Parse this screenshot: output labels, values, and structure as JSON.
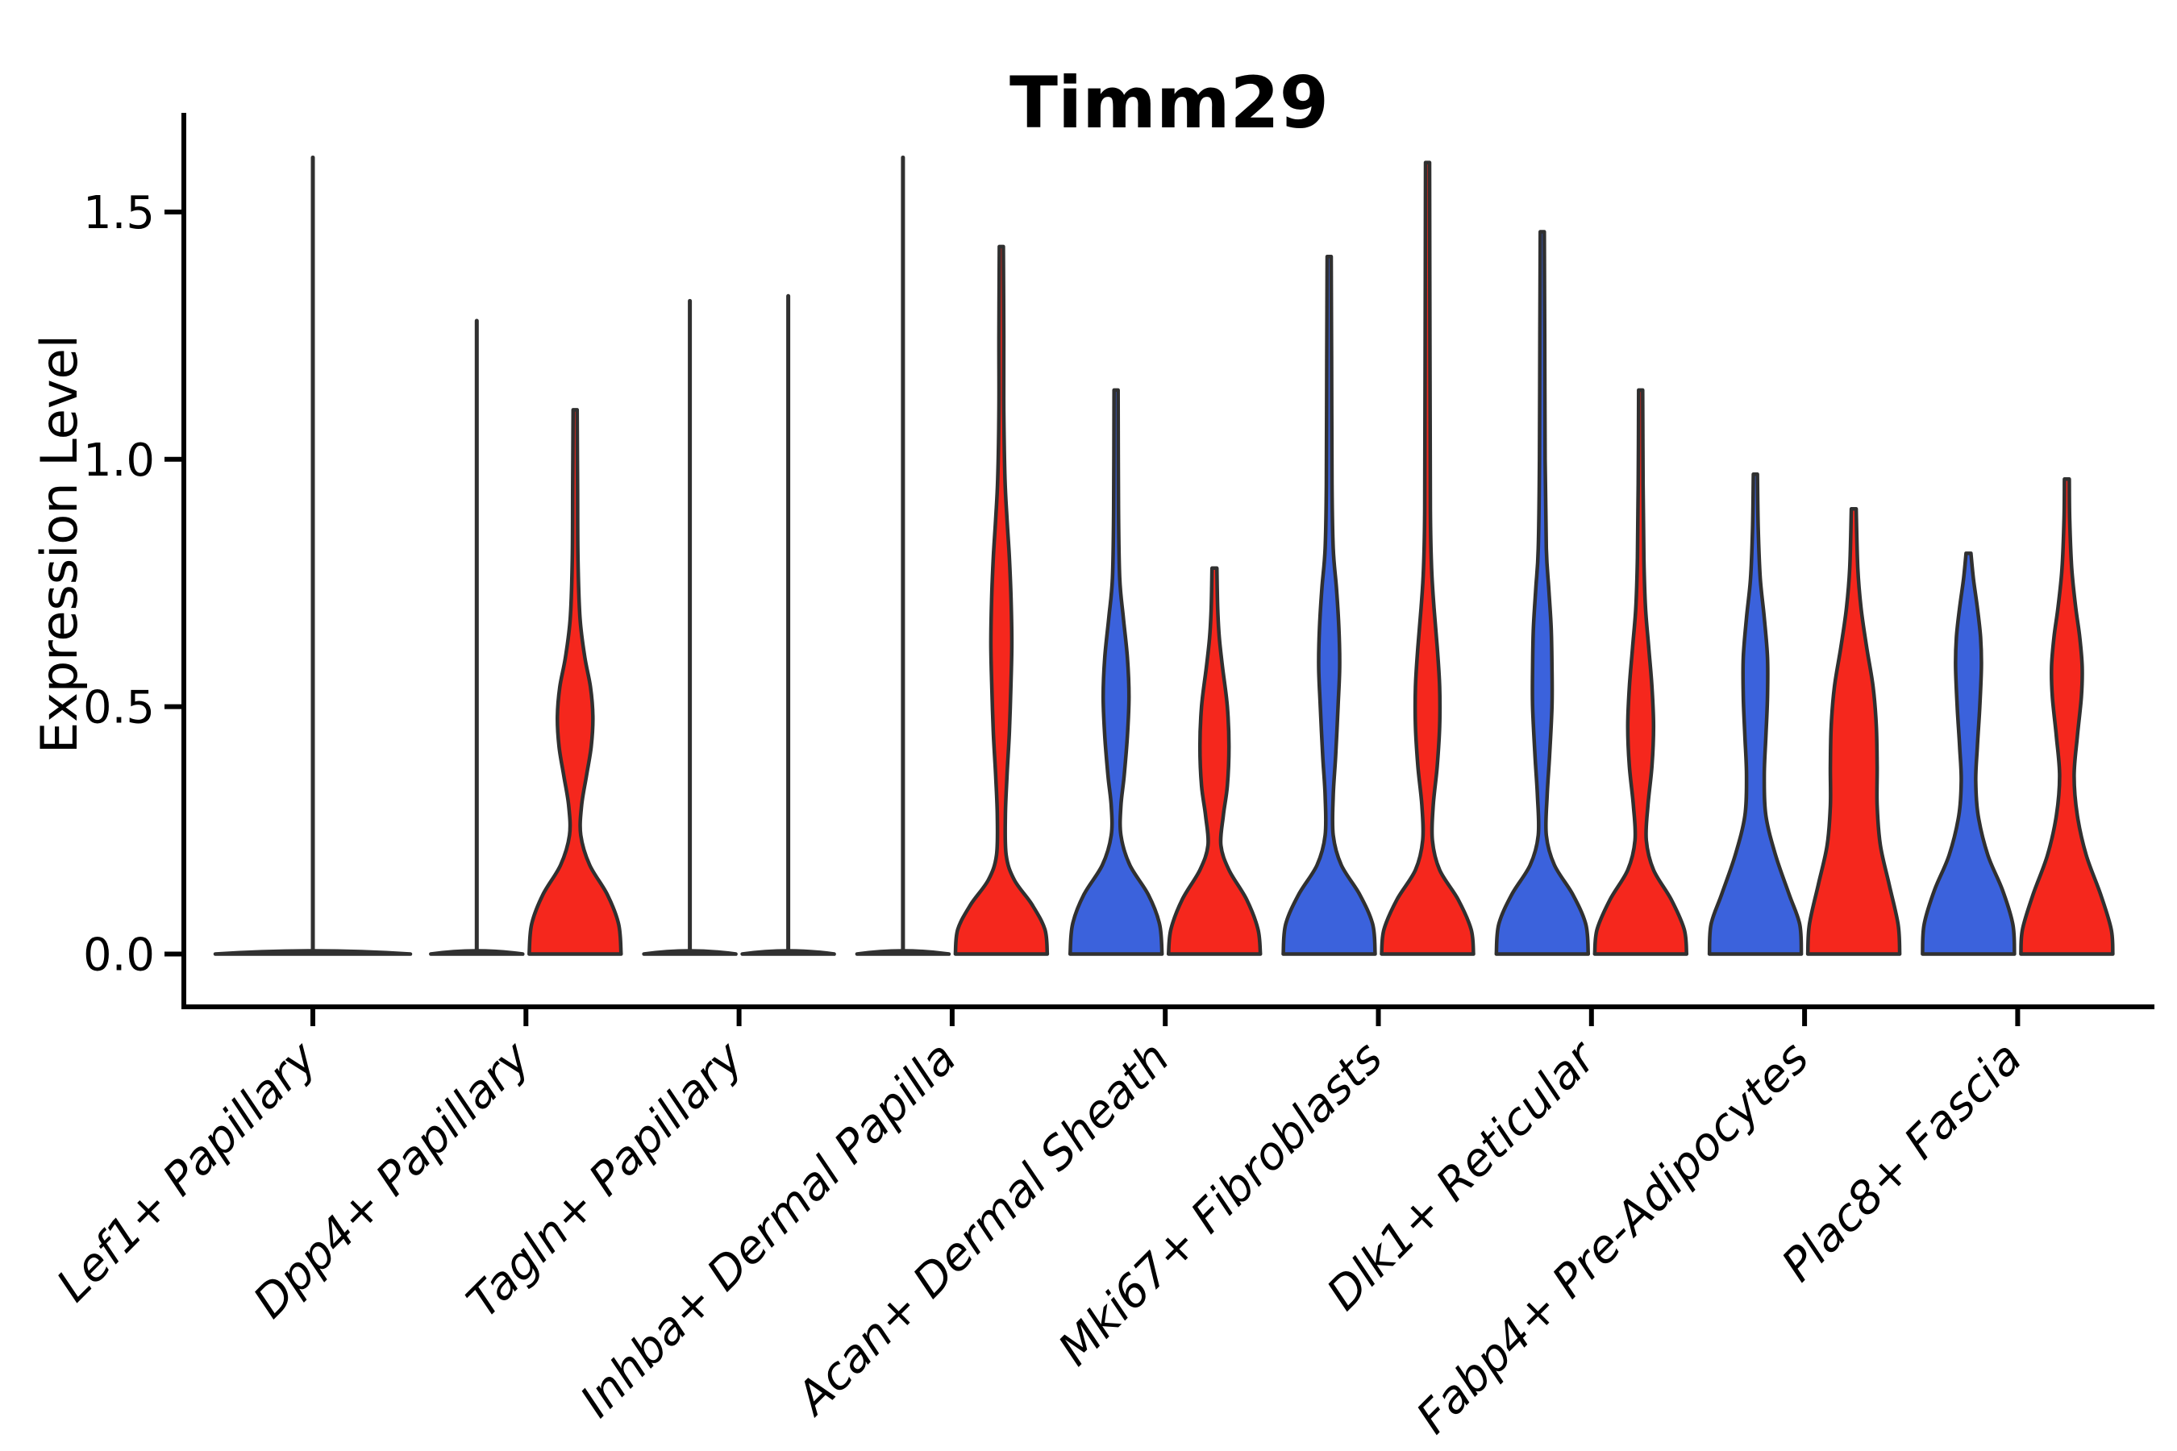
{
  "title": "Timm29",
  "chart_data": {
    "type": "violin",
    "title": "Timm29",
    "xlabel": "",
    "ylabel": "Expression Level",
    "yticks": [
      0.0,
      0.5,
      1.0,
      1.5
    ],
    "ylim": [
      -0.11,
      1.7
    ],
    "grid": false,
    "legend": null,
    "x_tick_rotation_deg": 45,
    "colors": {
      "condition_blue": "#3B62DC",
      "condition_red": "#F5271D",
      "outline": "#303030",
      "axis": "#000000",
      "background": "#ffffff"
    },
    "categories": [
      "Lef1+ Papillary",
      "Dpp4+ Papillary",
      "Tagln+ Papillary",
      "Inhba+ Dermal Papilla",
      "Acan+ Dermal Sheath",
      "Mki67+ Fibroblasts",
      "Dlk1+ Reticular",
      "Fabp4+ Pre-Adipocytes",
      "Plac8+ Fascia"
    ],
    "groups": [
      {
        "category": "Lef1+ Papillary",
        "violins": [
          {
            "side": "single",
            "color": null,
            "max": 1.61,
            "shape": "flat",
            "flat_halfwidth": 121
          }
        ]
      },
      {
        "category": "Dpp4+ Papillary",
        "violins": [
          {
            "side": "left",
            "color": "blue",
            "max": 1.28,
            "shape": "flat",
            "flat_halfwidth": 57
          },
          {
            "side": "right",
            "color": "red",
            "max": 1.1,
            "shape": "curved",
            "profile": [
              [
                0,
                57
              ],
              [
                0.06,
                54
              ],
              [
                0.12,
                40
              ],
              [
                0.18,
                18
              ],
              [
                0.24,
                7
              ],
              [
                0.3,
                8
              ],
              [
                0.36,
                14
              ],
              [
                0.42,
                20
              ],
              [
                0.48,
                22
              ],
              [
                0.54,
                19
              ],
              [
                0.6,
                12
              ],
              [
                0.68,
                6
              ],
              [
                0.8,
                3.5
              ],
              [
                0.95,
                3
              ],
              [
                1.1,
                2.5
              ]
            ]
          }
        ]
      },
      {
        "category": "Tagln+ Papillary",
        "violins": [
          {
            "side": "left",
            "color": "blue",
            "max": 1.32,
            "shape": "flat",
            "flat_halfwidth": 57
          },
          {
            "side": "right",
            "color": "red",
            "max": 1.33,
            "shape": "flat",
            "flat_halfwidth": 57
          }
        ]
      },
      {
        "category": "Inhba+ Dermal Papilla",
        "violins": [
          {
            "side": "left",
            "color": "blue",
            "max": 1.61,
            "shape": "flat",
            "flat_halfwidth": 57
          },
          {
            "side": "right",
            "color": "red",
            "max": 1.43,
            "shape": "curved",
            "profile": [
              [
                0,
                57
              ],
              [
                0.05,
                54
              ],
              [
                0.1,
                38
              ],
              [
                0.15,
                16
              ],
              [
                0.2,
                6
              ],
              [
                0.28,
                5
              ],
              [
                0.36,
                7
              ],
              [
                0.45,
                10
              ],
              [
                0.55,
                12
              ],
              [
                0.63,
                13
              ],
              [
                0.72,
                12
              ],
              [
                0.8,
                10
              ],
              [
                0.88,
                7
              ],
              [
                0.96,
                4.5
              ],
              [
                1.1,
                3
              ],
              [
                1.25,
                3
              ],
              [
                1.43,
                2.5
              ]
            ]
          }
        ]
      },
      {
        "category": "Acan+ Dermal Sheath",
        "violins": [
          {
            "side": "left",
            "color": "blue",
            "max": 1.14,
            "shape": "curved",
            "profile": [
              [
                0,
                57
              ],
              [
                0.06,
                54
              ],
              [
                0.12,
                40
              ],
              [
                0.18,
                17
              ],
              [
                0.24,
                6
              ],
              [
                0.3,
                6
              ],
              [
                0.36,
                10
              ],
              [
                0.44,
                14
              ],
              [
                0.52,
                16
              ],
              [
                0.6,
                14
              ],
              [
                0.68,
                9
              ],
              [
                0.76,
                4.5
              ],
              [
                0.9,
                3
              ],
              [
                1.14,
                2.5
              ]
            ]
          },
          {
            "side": "right",
            "color": "red",
            "max": 0.78,
            "shape": "curved",
            "profile": [
              [
                0,
                57
              ],
              [
                0.05,
                54
              ],
              [
                0.11,
                40
              ],
              [
                0.17,
                18
              ],
              [
                0.22,
                8
              ],
              [
                0.28,
                11
              ],
              [
                0.34,
                16
              ],
              [
                0.42,
                18
              ],
              [
                0.5,
                16
              ],
              [
                0.58,
                10
              ],
              [
                0.64,
                6
              ],
              [
                0.7,
                4
              ],
              [
                0.78,
                3
              ]
            ]
          }
        ]
      },
      {
        "category": "Mki67+ Fibroblasts",
        "violins": [
          {
            "side": "left",
            "color": "blue",
            "max": 1.41,
            "shape": "curved",
            "profile": [
              [
                0,
                57
              ],
              [
                0.06,
                54
              ],
              [
                0.12,
                38
              ],
              [
                0.18,
                15
              ],
              [
                0.24,
                5
              ],
              [
                0.32,
                5
              ],
              [
                0.4,
                8
              ],
              [
                0.5,
                11
              ],
              [
                0.58,
                13
              ],
              [
                0.66,
                12
              ],
              [
                0.74,
                9
              ],
              [
                0.82,
                5
              ],
              [
                0.95,
                3.5
              ],
              [
                1.2,
                3
              ],
              [
                1.41,
                2.5
              ]
            ]
          },
          {
            "side": "right",
            "color": "red",
            "max": 1.6,
            "shape": "curved",
            "profile": [
              [
                0,
                57
              ],
              [
                0.05,
                54
              ],
              [
                0.11,
                38
              ],
              [
                0.17,
                15
              ],
              [
                0.23,
                6
              ],
              [
                0.3,
                7
              ],
              [
                0.38,
                12
              ],
              [
                0.46,
                15
              ],
              [
                0.54,
                15
              ],
              [
                0.62,
                12
              ],
              [
                0.7,
                8
              ],
              [
                0.78,
                5
              ],
              [
                0.9,
                3.5
              ],
              [
                1.2,
                3
              ],
              [
                1.6,
                2.5
              ]
            ]
          }
        ]
      },
      {
        "category": "Dlk1+ Reticular",
        "violins": [
          {
            "side": "left",
            "color": "blue",
            "max": 1.46,
            "shape": "curved",
            "profile": [
              [
                0,
                57
              ],
              [
                0.06,
                54
              ],
              [
                0.12,
                38
              ],
              [
                0.18,
                15
              ],
              [
                0.24,
                5
              ],
              [
                0.32,
                6
              ],
              [
                0.4,
                9
              ],
              [
                0.5,
                12
              ],
              [
                0.58,
                12
              ],
              [
                0.66,
                11
              ],
              [
                0.74,
                8
              ],
              [
                0.82,
                5
              ],
              [
                1.0,
                3.5
              ],
              [
                1.25,
                3
              ],
              [
                1.46,
                2.5
              ]
            ]
          },
          {
            "side": "right",
            "color": "red",
            "max": 1.14,
            "shape": "curved",
            "profile": [
              [
                0,
                57
              ],
              [
                0.05,
                54
              ],
              [
                0.11,
                38
              ],
              [
                0.17,
                16
              ],
              [
                0.23,
                7
              ],
              [
                0.3,
                9
              ],
              [
                0.38,
                14
              ],
              [
                0.46,
                16
              ],
              [
                0.54,
                14
              ],
              [
                0.62,
                10
              ],
              [
                0.7,
                6
              ],
              [
                0.8,
                4
              ],
              [
                0.95,
                3
              ],
              [
                1.14,
                2.5
              ]
            ]
          }
        ]
      },
      {
        "category": "Fabp4+ Pre-Adipocytes",
        "violins": [
          {
            "side": "left",
            "color": "blue",
            "max": 0.97,
            "shape": "curved",
            "profile": [
              [
                0,
                57
              ],
              [
                0.06,
                55
              ],
              [
                0.12,
                42
              ],
              [
                0.2,
                25
              ],
              [
                0.28,
                13
              ],
              [
                0.36,
                11
              ],
              [
                0.44,
                13
              ],
              [
                0.52,
                15
              ],
              [
                0.6,
                15
              ],
              [
                0.68,
                11
              ],
              [
                0.76,
                6
              ],
              [
                0.86,
                3.5
              ],
              [
                0.97,
                2.5
              ]
            ]
          },
          {
            "side": "right",
            "color": "red",
            "max": 0.9,
            "shape": "curved",
            "profile": [
              [
                0,
                57
              ],
              [
                0.06,
                55
              ],
              [
                0.14,
                44
              ],
              [
                0.22,
                33
              ],
              [
                0.3,
                29
              ],
              [
                0.38,
                29
              ],
              [
                0.46,
                28
              ],
              [
                0.54,
                24
              ],
              [
                0.62,
                16
              ],
              [
                0.7,
                9
              ],
              [
                0.78,
                5
              ],
              [
                0.9,
                3
              ]
            ]
          }
        ]
      },
      {
        "category": "Plac8+ Fascia",
        "violins": [
          {
            "side": "left",
            "color": "blue",
            "max": 0.81,
            "shape": "curved",
            "profile": [
              [
                0,
                57
              ],
              [
                0.06,
                55
              ],
              [
                0.13,
                42
              ],
              [
                0.2,
                24
              ],
              [
                0.28,
                12
              ],
              [
                0.35,
                9
              ],
              [
                0.42,
                11
              ],
              [
                0.5,
                14
              ],
              [
                0.58,
                16
              ],
              [
                0.64,
                15
              ],
              [
                0.7,
                11
              ],
              [
                0.76,
                6
              ],
              [
                0.81,
                3
              ]
            ]
          },
          {
            "side": "right",
            "color": "red",
            "max": 0.96,
            "shape": "curved",
            "profile": [
              [
                0,
                57
              ],
              [
                0.05,
                55
              ],
              [
                0.12,
                42
              ],
              [
                0.2,
                24
              ],
              [
                0.28,
                13
              ],
              [
                0.36,
                9
              ],
              [
                0.44,
                13
              ],
              [
                0.52,
                18
              ],
              [
                0.58,
                19
              ],
              [
                0.64,
                16
              ],
              [
                0.7,
                11
              ],
              [
                0.78,
                6
              ],
              [
                0.88,
                3.5
              ],
              [
                0.96,
                3
              ]
            ]
          }
        ]
      }
    ]
  }
}
